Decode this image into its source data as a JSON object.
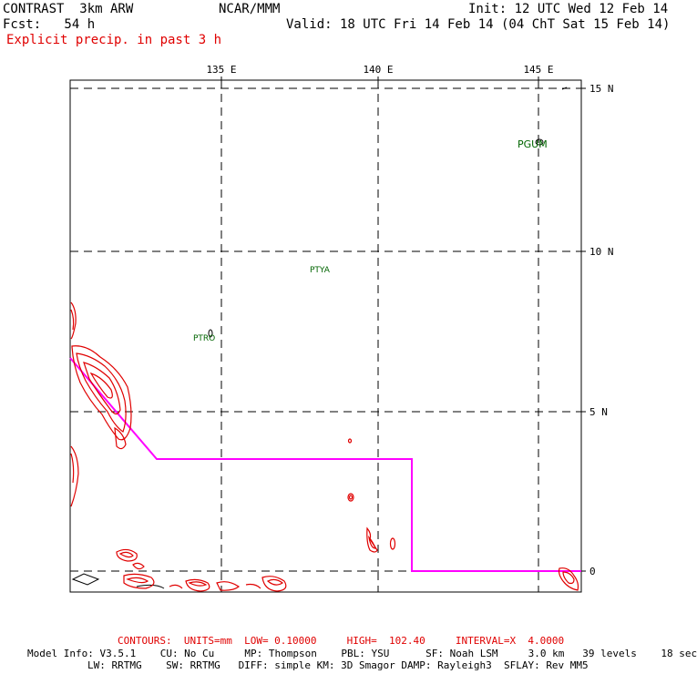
{
  "header": {
    "model": "CONTRAST  3km ARW",
    "org": "NCAR/MMM",
    "init": "Init: 12 UTC Wed 12 Feb 14",
    "fcst": "Fcst:   54 h",
    "valid": "Valid: 18 UTC Fri 14 Feb 14 (04 ChT Sat 15 Feb 14)",
    "field": "Explicit precip. in past 3 h"
  },
  "map": {
    "lon_labels": [
      "135 E",
      "140 E",
      "145 E"
    ],
    "lat_labels": [
      "15 N",
      "10 N",
      "5 N",
      "0"
    ],
    "stations": [
      "PGUM",
      "PTYA",
      "PTRO"
    ],
    "colors": {
      "precip": "#e00000",
      "boundary": "#ff00ff",
      "station": "#006400"
    }
  },
  "footer": {
    "contours": "CONTOURS:  UNITS=mm  LOW= 0.10000     HIGH=  102.40     INTERVAL=X  4.0000",
    "model_info_1": "Model Info: V3.5.1    CU: No Cu     MP: Thompson    PBL: YSU      SF: Noah LSM     3.0 km   39 levels    18 sec",
    "model_info_2": "LW: RRTMG    SW: RRTMG   DIFF: simple KM: 3D Smagor DAMP: Rayleigh3  SFLAY: Rev MM5"
  }
}
